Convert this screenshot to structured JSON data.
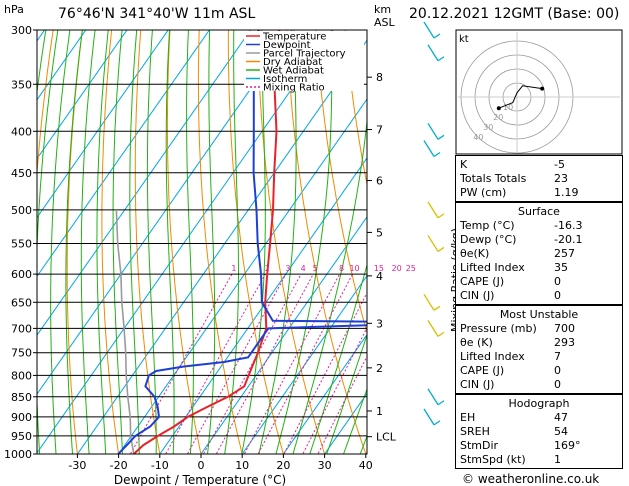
{
  "header": {
    "units_p": "hPa",
    "location": "76°46'N  341°40'W  11m  ASL",
    "units_km": "km",
    "units_asl": "ASL",
    "datetime": "20.12.2021  12GMT  (Base: 00)"
  },
  "legend": [
    "Temperature",
    "Dewpoint",
    "Parcel Trajectory",
    "Dry Adiabat",
    "Wet Adiabat",
    "Isotherm",
    "Mixing Ratio"
  ],
  "colors": {
    "temperature": "#e8222a",
    "dewpoint": "#1e3fd6",
    "parcel": "#9a9a9a",
    "dry_adiabat": "#f28a00",
    "wet_adiabat": "#22b214",
    "isotherm": "#00a6e8",
    "mixing_ratio": "#e0209a",
    "wind": "#00b0c8",
    "hodo_wind": "#d8c000"
  },
  "chart_data": {
    "type": "line",
    "xlabel": "Dewpoint / Temperature (°C)",
    "ylabel": "Mixing Ratio (g/kg)",
    "x_ticks": [
      -30,
      -20,
      -10,
      0,
      10,
      20,
      30,
      40
    ],
    "pressure_levels": [
      300,
      350,
      400,
      450,
      500,
      550,
      600,
      650,
      700,
      750,
      800,
      850,
      900,
      950,
      1000
    ],
    "height_km_ticks": [
      {
        "km": "8",
        "p": 343
      },
      {
        "km": "7",
        "p": 398
      },
      {
        "km": "6",
        "p": 460
      },
      {
        "km": "5",
        "p": 533
      },
      {
        "km": "4",
        "p": 603
      },
      {
        "km": "3",
        "p": 690
      },
      {
        "km": "2",
        "p": 783
      },
      {
        "km": "1",
        "p": 885
      },
      {
        "km": "LCL",
        "p": 952
      }
    ],
    "mixing_ratio_labels": [
      "1",
      "2",
      "3",
      "4",
      "5",
      "8",
      "10",
      "15",
      "20",
      "25"
    ],
    "series": [
      {
        "name": "Temperature",
        "points": [
          [
            1000,
            -16.3
          ],
          [
            975,
            -15.5
          ],
          [
            950,
            -13.5
          ],
          [
            925,
            -11.2
          ],
          [
            900,
            -9.5
          ],
          [
            875,
            -6.5
          ],
          [
            850,
            -3.2
          ],
          [
            825,
            -1
          ],
          [
            800,
            -1.8
          ],
          [
            750,
            -3.4
          ],
          [
            700,
            -5.5
          ],
          [
            650,
            -10.2
          ],
          [
            600,
            -14.5
          ],
          [
            550,
            -19
          ],
          [
            500,
            -24
          ],
          [
            450,
            -30
          ],
          [
            400,
            -36.5
          ],
          [
            350,
            -45
          ],
          [
            300,
            -53
          ]
        ]
      },
      {
        "name": "Dewpoint",
        "points": [
          [
            1000,
            -20.1
          ],
          [
            975,
            -19.5
          ],
          [
            950,
            -19
          ],
          [
            925,
            -17
          ],
          [
            900,
            -16.5
          ],
          [
            875,
            -18.5
          ],
          [
            850,
            -21
          ],
          [
            825,
            -25
          ],
          [
            800,
            -26
          ],
          [
            790,
            -25
          ],
          [
            780,
            -19
          ],
          [
            770,
            -10
          ],
          [
            760,
            -5
          ],
          [
            700,
            -5
          ],
          [
            692,
            25
          ],
          [
            688,
            40
          ],
          [
            685,
            -5.2
          ],
          [
            650,
            -11
          ],
          [
            600,
            -16
          ],
          [
            550,
            -22
          ],
          [
            500,
            -28
          ],
          [
            450,
            -35
          ],
          [
            400,
            -42
          ],
          [
            350,
            -50
          ],
          [
            300,
            -58
          ]
        ]
      },
      {
        "name": "Parcel Trajectory",
        "points": [
          [
            1000,
            -16.3
          ],
          [
            952,
            -20
          ],
          [
            900,
            -23.5
          ],
          [
            850,
            -27.5
          ],
          [
            800,
            -31.5
          ],
          [
            750,
            -35.5
          ],
          [
            700,
            -40
          ],
          [
            650,
            -45
          ],
          [
            600,
            -50
          ],
          [
            550,
            -56
          ],
          [
            500,
            -62
          ]
        ]
      }
    ],
    "wind_barbs_hpa": [
      300,
      320,
      400,
      420,
      500,
      550,
      650,
      700,
      850,
      900
    ],
    "hodograph": {
      "label": "kt",
      "ring_labels": [
        "10",
        "20",
        "30",
        "40"
      ],
      "points": [
        [
          -13,
          8
        ],
        [
          -3,
          4
        ],
        [
          0,
          -3
        ],
        [
          4,
          -8
        ],
        [
          18,
          -6
        ]
      ]
    }
  },
  "indices": [
    {
      "key": "K",
      "value": "-5"
    },
    {
      "key": "Totals Totals",
      "value": "23"
    },
    {
      "key": "PW (cm)",
      "value": "1.19"
    }
  ],
  "surface": {
    "title": "Surface",
    "rows": [
      {
        "key": "Temp (°C)",
        "value": "-16.3"
      },
      {
        "key": "Dewp (°C)",
        "value": "-20.1"
      },
      {
        "key": "θe(K)",
        "value": "257"
      },
      {
        "key": "Lifted Index",
        "value": "35"
      },
      {
        "key": "CAPE (J)",
        "value": "0"
      },
      {
        "key": "CIN (J)",
        "value": "0"
      }
    ]
  },
  "most_unstable": {
    "title": "Most Unstable",
    "rows": [
      {
        "key": "Pressure (mb)",
        "value": "700"
      },
      {
        "key": "θe (K)",
        "value": "293"
      },
      {
        "key": "Lifted Index",
        "value": "7"
      },
      {
        "key": "CAPE (J)",
        "value": "0"
      },
      {
        "key": "CIN (J)",
        "value": "0"
      }
    ]
  },
  "hodograph_table": {
    "title": "Hodograph",
    "rows": [
      {
        "key": "EH",
        "value": "47"
      },
      {
        "key": "SREH",
        "value": "54"
      },
      {
        "key": "StmDir",
        "value": "169°"
      },
      {
        "key": "StmSpd (kt)",
        "value": "1"
      }
    ]
  },
  "footer": {
    "copyright": "© weatheronline.co.uk"
  }
}
